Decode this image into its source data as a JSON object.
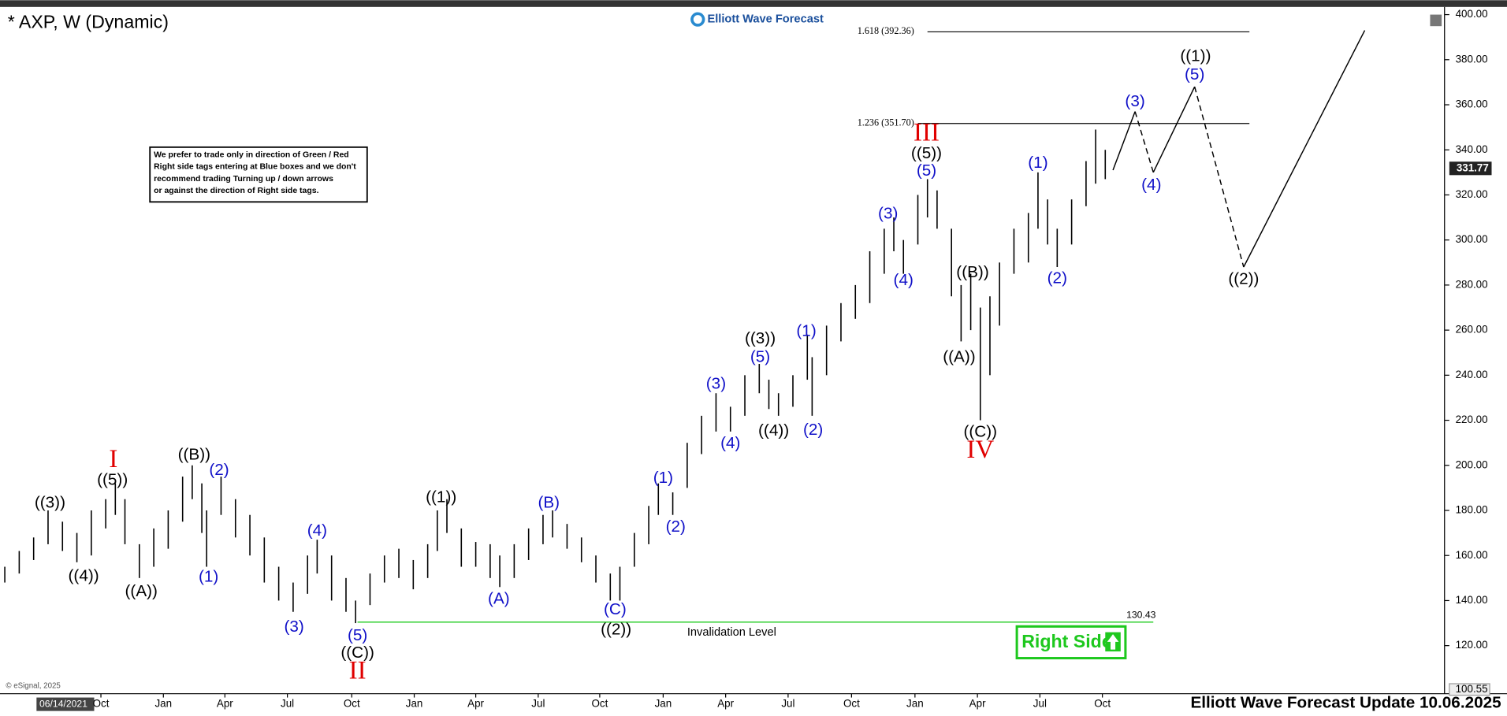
{
  "chart_data": {
    "type": "ohlc",
    "title": "* AXP, W (Dynamic)",
    "brand": "Elliott Wave Forecast",
    "footer": "Elliott Wave Forecast Update 10.06.2025",
    "copyright": "© eSignal, 2025",
    "cursor_date": "06/14/2021",
    "notice": [
      "We prefer to trade only in direction of Green / Red",
      "Right side tags entering at Blue boxes and we don't",
      "recommend trading Turning up / down arrows",
      "or against the direction of Right side tags."
    ],
    "right_side": "Right Side",
    "color": "#000000",
    "ylim": [
      100.55,
      400
    ],
    "yticks": [
      {
        "value": 120,
        "label": "120.00"
      },
      {
        "value": 140,
        "label": "140.00"
      },
      {
        "value": 160,
        "label": "160.00"
      },
      {
        "value": 180,
        "label": "180.00"
      },
      {
        "value": 200,
        "label": "200.00"
      },
      {
        "value": 220,
        "label": "220.00"
      },
      {
        "value": 240,
        "label": "240.00"
      },
      {
        "value": 260,
        "label": "260.00"
      },
      {
        "value": 280,
        "label": "280.00"
      },
      {
        "value": 300,
        "label": "300.00"
      },
      {
        "value": 320,
        "label": "320.00"
      },
      {
        "value": 340,
        "label": "340.00"
      },
      {
        "value": 360,
        "label": "360.00"
      },
      {
        "value": 380,
        "label": "380.00"
      },
      {
        "value": 400,
        "label": "400.00"
      }
    ],
    "last_price": 331.77,
    "xlim": [
      0,
      312
    ],
    "xticks": [
      {
        "value": 21,
        "label": "Oct"
      },
      {
        "value": 34,
        "label": "Jan"
      },
      {
        "value": 46.8,
        "label": "Apr"
      },
      {
        "value": 59.8,
        "label": "Jul"
      },
      {
        "value": 73.2,
        "label": "Oct"
      },
      {
        "value": 86.2,
        "label": "Jan"
      },
      {
        "value": 99,
        "label": "Apr"
      },
      {
        "value": 112,
        "label": "Jul"
      },
      {
        "value": 124.8,
        "label": "Oct"
      },
      {
        "value": 138,
        "label": "Jan"
      },
      {
        "value": 151,
        "label": "Apr"
      },
      {
        "value": 164,
        "label": "Jul"
      },
      {
        "value": 177.2,
        "label": "Oct"
      },
      {
        "value": 190.4,
        "label": "Jan"
      },
      {
        "value": 203.4,
        "label": "Apr"
      },
      {
        "value": 216.4,
        "label": "Jul"
      },
      {
        "value": 229.4,
        "label": "Oct"
      }
    ],
    "x": [
      1,
      4,
      7,
      10,
      13,
      16,
      19,
      22,
      24,
      26,
      29,
      32,
      35,
      38,
      40,
      42,
      43,
      46,
      49,
      52,
      55,
      58,
      61,
      64,
      66,
      69,
      72,
      74,
      77,
      80,
      83,
      86,
      89,
      91,
      93,
      96,
      99,
      102,
      104,
      107,
      110,
      113,
      115,
      118,
      121,
      124,
      127,
      129,
      132,
      135,
      137,
      140,
      143,
      146,
      149,
      152,
      155,
      158,
      160,
      162,
      165,
      168,
      169,
      172,
      175,
      178,
      181,
      184,
      186,
      188,
      191,
      193,
      195,
      198,
      200,
      202,
      204,
      206,
      208,
      211,
      214,
      216,
      218,
      220,
      223,
      226,
      228,
      230
    ],
    "high": [
      155,
      162,
      168,
      180,
      175,
      170,
      180,
      185,
      192,
      185,
      165,
      172,
      180,
      195,
      200,
      192,
      180,
      195,
      185,
      178,
      168,
      155,
      148,
      160,
      167,
      160,
      150,
      140,
      152,
      160,
      163,
      158,
      165,
      180,
      185,
      172,
      166,
      165,
      160,
      165,
      172,
      178,
      180,
      174,
      168,
      160,
      152,
      155,
      170,
      182,
      192,
      188,
      210,
      222,
      232,
      226,
      240,
      245,
      238,
      232,
      240,
      258,
      248,
      262,
      272,
      280,
      295,
      305,
      310,
      300,
      320,
      327,
      322,
      305,
      280,
      285,
      270,
      275,
      290,
      305,
      312,
      330,
      318,
      305,
      318,
      335,
      349,
      340
    ],
    "low": [
      148,
      152,
      158,
      165,
      162,
      157,
      160,
      172,
      178,
      165,
      150,
      155,
      163,
      175,
      185,
      170,
      155,
      178,
      168,
      160,
      148,
      140,
      135,
      143,
      152,
      140,
      135,
      130,
      138,
      148,
      150,
      145,
      150,
      162,
      170,
      155,
      155,
      150,
      146,
      150,
      158,
      165,
      168,
      163,
      157,
      148,
      140,
      140,
      155,
      165,
      178,
      178,
      190,
      205,
      215,
      215,
      222,
      232,
      225,
      222,
      226,
      238,
      222,
      240,
      255,
      265,
      272,
      285,
      295,
      285,
      298,
      310,
      305,
      275,
      255,
      260,
      220,
      240,
      262,
      285,
      290,
      305,
      298,
      288,
      298,
      315,
      325,
      327
    ],
    "projection": {
      "x": [
        231.6,
        236.2,
        240,
        248.6,
        258.8,
        284
      ],
      "y": [
        331,
        357,
        330,
        368,
        288,
        393
      ]
    },
    "fib_levels": [
      {
        "label": "1.618 (392.36)",
        "value": 392.36
      },
      {
        "label": "1.236 (351.70)",
        "value": 351.7
      }
    ],
    "invalidation": {
      "label": "Invalidation Level",
      "value": 130.43
    },
    "wave_labels": [
      {
        "text": "((3))",
        "color": "#000000"
      },
      {
        "text": "((4))",
        "color": "#000000"
      },
      {
        "text": "I",
        "color": "#e00000"
      },
      {
        "text": "((5))",
        "color": "#000000"
      },
      {
        "text": "((A))",
        "color": "#000000"
      },
      {
        "text": "((B))",
        "color": "#000000"
      },
      {
        "text": "(2)",
        "color": "#1010c8"
      },
      {
        "text": "(1)",
        "color": "#1010c8"
      },
      {
        "text": "(3)",
        "color": "#1010c8"
      },
      {
        "text": "(4)",
        "color": "#1010c8"
      },
      {
        "text": "(5)",
        "color": "#1010c8"
      },
      {
        "text": "((C))",
        "color": "#000000"
      },
      {
        "text": "II",
        "color": "#e00000"
      },
      {
        "text": "((1))",
        "color": "#000000"
      },
      {
        "text": "(A)",
        "color": "#1010c8"
      },
      {
        "text": "(B)",
        "color": "#1010c8"
      },
      {
        "text": "(C)",
        "color": "#1010c8"
      },
      {
        "text": "((2))",
        "color": "#000000"
      },
      {
        "text": "(1)",
        "color": "#1010c8"
      },
      {
        "text": "(2)",
        "color": "#1010c8"
      },
      {
        "text": "(3)",
        "color": "#1010c8"
      },
      {
        "text": "(4)",
        "color": "#1010c8"
      },
      {
        "text": "(5)",
        "color": "#1010c8"
      },
      {
        "text": "((3))",
        "color": "#000000"
      },
      {
        "text": "((4))",
        "color": "#000000"
      },
      {
        "text": "(1)",
        "color": "#1010c8"
      },
      {
        "text": "(2)",
        "color": "#1010c8"
      },
      {
        "text": "(3)",
        "color": "#1010c8"
      },
      {
        "text": "(4)",
        "color": "#1010c8"
      },
      {
        "text": "III",
        "color": "#e00000"
      },
      {
        "text": "((5))",
        "color": "#000000"
      },
      {
        "text": "(5)",
        "color": "#1010c8"
      },
      {
        "text": "((B))",
        "color": "#000000"
      },
      {
        "text": "((A))",
        "color": "#000000"
      },
      {
        "text": "((C))",
        "color": "#000000"
      },
      {
        "text": "IV",
        "color": "#e00000"
      },
      {
        "text": "(1)",
        "color": "#1010c8"
      },
      {
        "text": "(2)",
        "color": "#1010c8"
      },
      {
        "text": "(3)",
        "color": "#1010c8"
      },
      {
        "text": "(4)",
        "color": "#1010c8"
      },
      {
        "text": "(5)",
        "color": "#1010c8"
      },
      {
        "text": "((1))",
        "color": "#000000"
      },
      {
        "text": "((2))",
        "color": "#000000"
      }
    ]
  }
}
